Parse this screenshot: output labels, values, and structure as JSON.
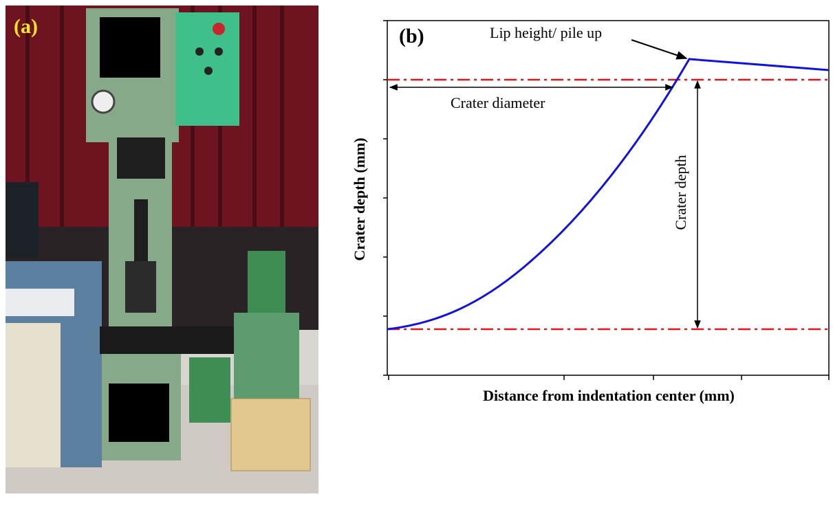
{
  "panel_a": {
    "label": "(a)"
  },
  "panel_b": {
    "label": "(b)",
    "x_axis_label": "Distance from indentation center (mm)",
    "y_axis_label": "Crater depth (mm)",
    "annotations": {
      "lip": "Lip height/ pile up",
      "diameter": "Crater diameter",
      "depth": "Crater depth"
    }
  }
}
